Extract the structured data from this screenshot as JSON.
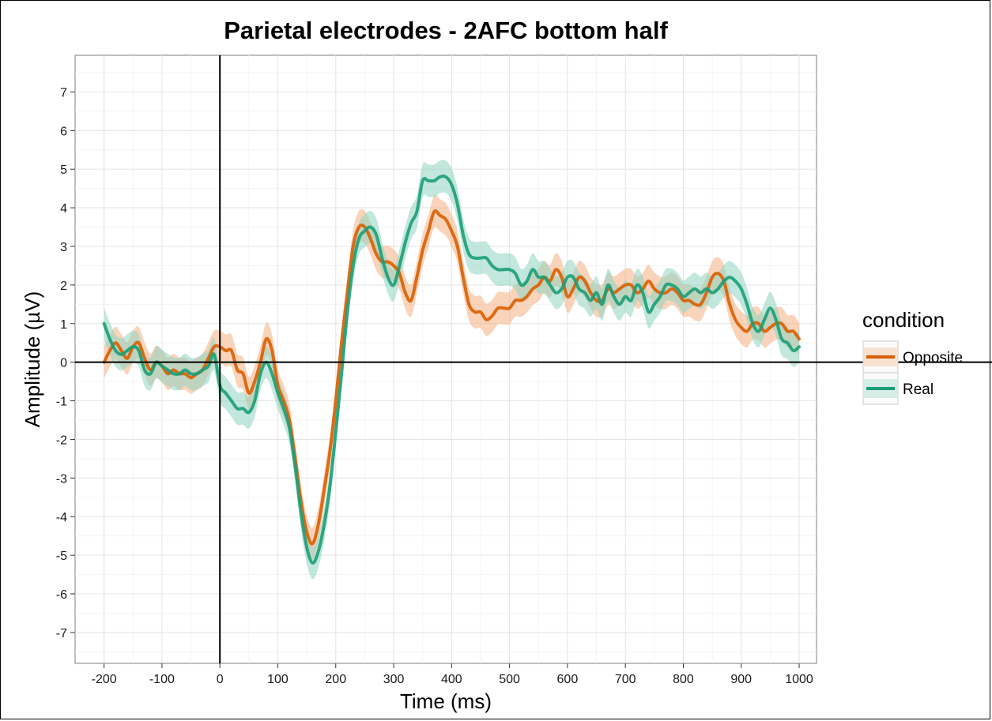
{
  "chart_data": {
    "type": "line",
    "title": "Parietal electrodes - 2AFC bottom half",
    "xlabel": "Time (ms)",
    "ylabel": "Amplitude (µV)",
    "xlim": [
      -250,
      1030
    ],
    "ylim": [
      -7.8,
      7.95
    ],
    "xticks": [
      -200,
      -100,
      0,
      100,
      200,
      300,
      400,
      500,
      600,
      700,
      800,
      900,
      1000
    ],
    "yticks": [
      -7,
      -6,
      -5,
      -4,
      -3,
      -2,
      -1,
      0,
      1,
      2,
      3,
      4,
      5,
      6,
      7
    ],
    "grid": true,
    "reference_lines": {
      "x": 0,
      "y": 0
    },
    "legend": {
      "title": "condition",
      "position": "right"
    },
    "series": [
      {
        "name": "Opposite",
        "color": "#d95f02",
        "band_color": "#f4b183",
        "x": [
          -200,
          -190,
          -180,
          -170,
          -160,
          -150,
          -140,
          -130,
          -120,
          -110,
          -100,
          -90,
          -80,
          -70,
          -60,
          -50,
          -40,
          -30,
          -20,
          -10,
          0,
          10,
          20,
          30,
          40,
          50,
          60,
          70,
          80,
          90,
          100,
          110,
          120,
          130,
          140,
          150,
          160,
          170,
          180,
          190,
          200,
          210,
          220,
          230,
          240,
          250,
          260,
          270,
          280,
          290,
          300,
          310,
          320,
          330,
          340,
          350,
          360,
          370,
          380,
          390,
          400,
          410,
          420,
          430,
          440,
          450,
          460,
          470,
          480,
          490,
          500,
          510,
          520,
          530,
          540,
          550,
          560,
          570,
          580,
          590,
          600,
          610,
          620,
          630,
          640,
          650,
          660,
          670,
          680,
          690,
          700,
          710,
          720,
          730,
          740,
          750,
          760,
          770,
          780,
          790,
          800,
          810,
          820,
          830,
          840,
          850,
          860,
          870,
          880,
          890,
          900,
          910,
          920,
          930,
          940,
          950,
          960,
          970,
          980,
          990,
          1000
        ],
        "y": [
          0.0,
          0.3,
          0.5,
          0.3,
          0.1,
          0.4,
          0.5,
          0.1,
          -0.2,
          0.0,
          -0.1,
          -0.3,
          -0.2,
          -0.3,
          -0.3,
          -0.4,
          -0.3,
          -0.2,
          0.1,
          0.4,
          0.4,
          0.3,
          0.3,
          -0.2,
          -0.3,
          -0.8,
          -0.5,
          0.0,
          0.6,
          0.3,
          -0.6,
          -1.0,
          -1.5,
          -2.5,
          -3.6,
          -4.4,
          -4.7,
          -4.2,
          -3.3,
          -2.3,
          -1.0,
          0.5,
          1.8,
          3.0,
          3.5,
          3.5,
          3.2,
          2.8,
          2.6,
          2.6,
          2.5,
          2.3,
          1.8,
          1.6,
          2.2,
          2.9,
          3.4,
          3.9,
          3.8,
          3.7,
          3.4,
          3.0,
          2.2,
          1.5,
          1.3,
          1.3,
          1.1,
          1.2,
          1.4,
          1.4,
          1.4,
          1.6,
          1.6,
          1.7,
          1.9,
          2.0,
          2.2,
          2.1,
          2.4,
          2.2,
          1.7,
          1.9,
          2.2,
          2.1,
          1.8,
          1.6,
          1.6,
          1.9,
          1.8,
          1.9,
          2.0,
          2.0,
          1.8,
          1.9,
          2.1,
          1.9,
          1.8,
          1.8,
          1.9,
          1.8,
          1.6,
          1.6,
          1.5,
          1.5,
          1.8,
          2.2,
          2.3,
          2.1,
          1.5,
          1.1,
          0.9,
          0.8,
          1.0,
          1.0,
          0.8,
          0.9,
          1.0,
          1.0,
          0.8,
          0.8,
          0.6
        ]
      },
      {
        "name": "Real",
        "color": "#1b9e77",
        "band_color": "#8fd3c1",
        "x": [
          -200,
          -190,
          -180,
          -170,
          -160,
          -150,
          -140,
          -130,
          -120,
          -110,
          -100,
          -90,
          -80,
          -70,
          -60,
          -50,
          -40,
          -30,
          -20,
          -10,
          0,
          10,
          20,
          30,
          40,
          50,
          60,
          70,
          80,
          90,
          100,
          110,
          120,
          130,
          140,
          150,
          160,
          170,
          180,
          190,
          200,
          210,
          220,
          230,
          240,
          250,
          260,
          270,
          280,
          290,
          300,
          310,
          320,
          330,
          340,
          350,
          360,
          370,
          380,
          390,
          400,
          410,
          420,
          430,
          440,
          450,
          460,
          470,
          480,
          490,
          500,
          510,
          520,
          530,
          540,
          550,
          560,
          570,
          580,
          590,
          600,
          610,
          620,
          630,
          640,
          650,
          660,
          670,
          680,
          690,
          700,
          710,
          720,
          730,
          740,
          750,
          760,
          770,
          780,
          790,
          800,
          810,
          820,
          830,
          840,
          850,
          860,
          870,
          880,
          890,
          900,
          910,
          920,
          930,
          940,
          950,
          960,
          970,
          980,
          990,
          1000
        ],
        "y": [
          1.0,
          0.6,
          0.3,
          0.2,
          0.3,
          0.4,
          0.3,
          -0.2,
          -0.3,
          0.0,
          -0.1,
          -0.2,
          -0.3,
          -0.3,
          -0.2,
          -0.3,
          -0.3,
          -0.2,
          -0.1,
          0.2,
          -0.6,
          -0.8,
          -1.0,
          -1.2,
          -1.2,
          -1.3,
          -1.0,
          -0.3,
          0.0,
          -0.3,
          -0.8,
          -1.2,
          -1.7,
          -2.7,
          -3.9,
          -4.8,
          -5.2,
          -4.9,
          -4.2,
          -3.2,
          -1.8,
          -0.3,
          1.3,
          2.5,
          3.2,
          3.4,
          3.5,
          3.3,
          2.7,
          2.2,
          2.0,
          2.5,
          3.1,
          3.6,
          3.9,
          4.7,
          4.7,
          4.7,
          4.8,
          4.8,
          4.6,
          4.1,
          3.3,
          2.8,
          2.7,
          2.7,
          2.7,
          2.5,
          2.4,
          2.4,
          2.4,
          2.3,
          2.0,
          2.1,
          2.4,
          2.2,
          2.2,
          2.0,
          1.8,
          1.9,
          2.2,
          2.2,
          1.9,
          1.8,
          1.6,
          1.8,
          1.5,
          2.0,
          1.7,
          1.5,
          1.7,
          1.6,
          2.0,
          1.8,
          1.3,
          1.5,
          1.7,
          2.0,
          2.0,
          1.9,
          1.7,
          1.8,
          1.9,
          1.8,
          1.9,
          1.8,
          1.9,
          2.1,
          2.2,
          2.1,
          1.9,
          1.5,
          1.0,
          0.8,
          1.1,
          1.4,
          1.1,
          0.6,
          0.5,
          0.3,
          0.4
        ]
      }
    ]
  }
}
